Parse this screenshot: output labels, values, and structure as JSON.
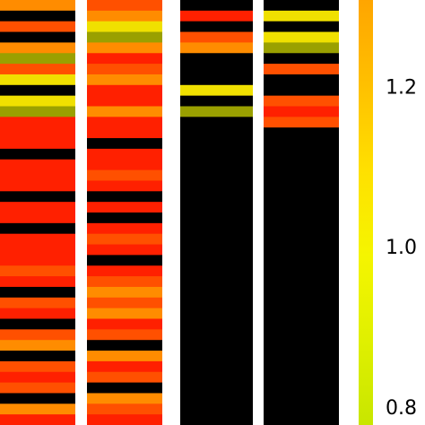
{
  "chart_data": {
    "type": "heatmap",
    "columns": [
      [
        "#ff8c00",
        "#000000",
        "#ff5000",
        "#000000",
        "#ff8c00",
        "#9aa000",
        "#ff5000",
        "#f0e000",
        "#000000",
        "#f0e000",
        "#9aa000",
        "#ff2000",
        "#ff2000",
        "#ff2000",
        "#000000",
        "#ff2000",
        "#ff2000",
        "#ff2000",
        "#000000",
        "#ff2000",
        "#ff2000",
        "#000000",
        "#ff2000",
        "#ff2000",
        "#ff2000",
        "#ff5000",
        "#ff2000",
        "#000000",
        "#ff5000",
        "#ff2000",
        "#000000",
        "#ff5000",
        "#ff8c00",
        "#000000",
        "#ff5000",
        "#ff2000",
        "#ff5000",
        "#000000",
        "#ff8c00",
        "#ff2000"
      ],
      [
        "#ff5000",
        "#ff8c00",
        "#f0e000",
        "#9aa000",
        "#ff8c00",
        "#ff2000",
        "#ff5000",
        "#ff8c00",
        "#ff2000",
        "#ff2000",
        "#ff8c00",
        "#ff2000",
        "#ff2000",
        "#000000",
        "#ff2000",
        "#ff2000",
        "#ff5000",
        "#ff2000",
        "#000000",
        "#ff2000",
        "#000000",
        "#ff2000",
        "#ff5000",
        "#ff2000",
        "#000000",
        "#ff2000",
        "#ff5000",
        "#ff8c00",
        "#ff5000",
        "#ff8c00",
        "#ff2000",
        "#ff5000",
        "#000000",
        "#ff8c00",
        "#ff2000",
        "#ff5000",
        "#000000",
        "#ff8c00",
        "#ff5000",
        "#ff2000"
      ],
      [
        "#000000",
        "#ff2000",
        "#000000",
        "#ff5000",
        "#ff8c00",
        "#000000",
        "#000000",
        "#000000",
        "#f0e000",
        "#000000",
        "#9aa000",
        "#000000",
        "#000000",
        "#000000",
        "#000000",
        "#000000",
        "#000000",
        "#000000",
        "#000000",
        "#000000",
        "#000000",
        "#000000",
        "#000000",
        "#000000",
        "#000000",
        "#000000",
        "#000000",
        "#000000",
        "#000000",
        "#000000",
        "#000000",
        "#000000",
        "#000000",
        "#000000",
        "#000000",
        "#000000",
        "#000000",
        "#000000",
        "#000000",
        "#000000"
      ],
      [
        "#000000",
        "#f0e000",
        "#000000",
        "#f0e000",
        "#9aa000",
        "#000000",
        "#ff5000",
        "#000000",
        "#000000",
        "#ff5000",
        "#ff2000",
        "#ff5000",
        "#000000",
        "#000000",
        "#000000",
        "#000000",
        "#000000",
        "#000000",
        "#000000",
        "#000000",
        "#000000",
        "#000000",
        "#000000",
        "#000000",
        "#000000",
        "#000000",
        "#000000",
        "#000000",
        "#000000",
        "#000000",
        "#000000",
        "#000000",
        "#000000",
        "#000000",
        "#000000",
        "#000000",
        "#000000",
        "#000000",
        "#000000",
        "#000000"
      ]
    ],
    "colorbar": {
      "colors": [
        "#ffa500",
        "#ffc000",
        "#ffe000",
        "#f5f500",
        "#e0f000",
        "#c8e600"
      ],
      "ylim": [
        0.78,
        1.31
      ],
      "yticks": [
        {
          "value": 0.8,
          "label": "0.8"
        },
        {
          "value": 1.0,
          "label": "1.0"
        },
        {
          "value": 1.2,
          "label": "1.2"
        }
      ]
    }
  }
}
